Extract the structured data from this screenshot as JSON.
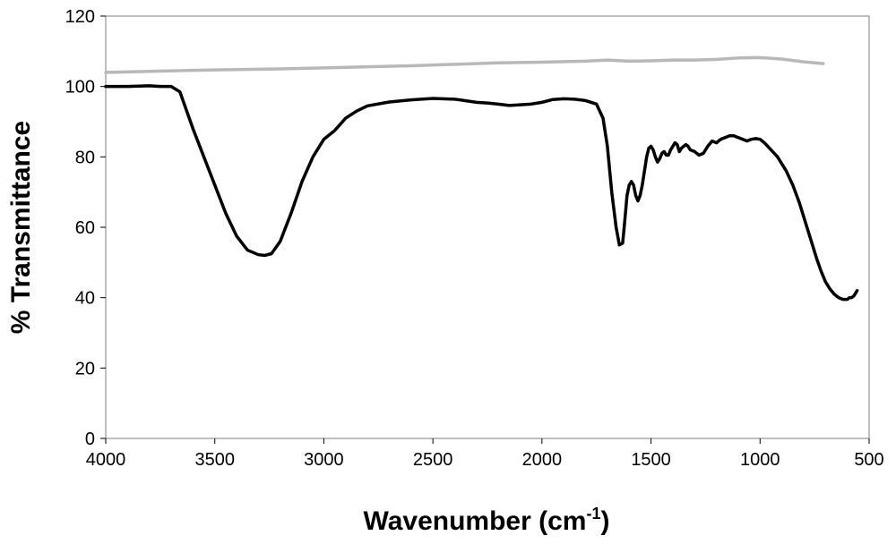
{
  "chart_data": {
    "type": "line",
    "xlabel_main": "Wavenumber (cm",
    "xlabel_sup": "-1",
    "xlabel_close": ")",
    "ylabel": "% Transmittance",
    "xlim": [
      4000,
      500
    ],
    "ylim": [
      0,
      120
    ],
    "x_ticks": [
      "4000",
      "3500",
      "3000",
      "2500",
      "2000",
      "1500",
      "1000",
      "500"
    ],
    "y_ticks": [
      "0",
      "20",
      "40",
      "60",
      "80",
      "100",
      "120"
    ],
    "grid": false,
    "legend": "none",
    "series": [
      {
        "color": "#b8b8b8",
        "x": [
          4000,
          3800,
          3600,
          3400,
          3200,
          3000,
          2800,
          2600,
          2400,
          2200,
          2000,
          1800,
          1700,
          1600,
          1500,
          1400,
          1300,
          1200,
          1100,
          1000,
          900,
          800,
          710
        ],
        "y": [
          104.0,
          104.3,
          104.6,
          104.8,
          105.0,
          105.3,
          105.6,
          105.9,
          106.3,
          106.7,
          106.9,
          107.2,
          107.5,
          107.2,
          107.3,
          107.5,
          107.5,
          107.7,
          108.1,
          108.2,
          107.8,
          107.0,
          106.5
        ]
      },
      {
        "color": "#000000",
        "x": [
          4000,
          3900,
          3800,
          3750,
          3700,
          3660,
          3600,
          3550,
          3500,
          3450,
          3400,
          3350,
          3300,
          3270,
          3240,
          3200,
          3150,
          3100,
          3050,
          3000,
          2950,
          2900,
          2850,
          2800,
          2700,
          2600,
          2500,
          2400,
          2300,
          2250,
          2200,
          2150,
          2100,
          2050,
          2000,
          1950,
          1900,
          1850,
          1800,
          1750,
          1720,
          1700,
          1680,
          1660,
          1645,
          1630,
          1620,
          1610,
          1600,
          1590,
          1580,
          1570,
          1560,
          1550,
          1540,
          1530,
          1520,
          1510,
          1500,
          1490,
          1480,
          1470,
          1460,
          1450,
          1440,
          1430,
          1420,
          1410,
          1400,
          1390,
          1380,
          1370,
          1360,
          1350,
          1340,
          1330,
          1320,
          1300,
          1280,
          1260,
          1240,
          1220,
          1200,
          1180,
          1160,
          1140,
          1120,
          1100,
          1080,
          1060,
          1040,
          1020,
          1000,
          980,
          950,
          920,
          900,
          880,
          850,
          820,
          800,
          780,
          760,
          740,
          720,
          700,
          680,
          660,
          640,
          620,
          600,
          590,
          580,
          570,
          560,
          555
        ],
        "y": [
          100.0,
          100.0,
          100.2,
          100.0,
          100.0,
          98.5,
          88.0,
          80.0,
          72.0,
          64.0,
          57.5,
          53.5,
          52.2,
          52.0,
          52.5,
          56.0,
          64.0,
          73.0,
          80.0,
          85.0,
          87.5,
          91.0,
          93.0,
          94.5,
          95.6,
          96.2,
          96.6,
          96.4,
          95.5,
          95.3,
          95.0,
          94.6,
          94.8,
          95.0,
          95.5,
          96.3,
          96.5,
          96.4,
          96.0,
          95.0,
          91.0,
          83.0,
          70.0,
          60.0,
          55.0,
          55.5,
          62.0,
          69.0,
          72.0,
          73.0,
          72.0,
          69.0,
          67.5,
          69.0,
          72.0,
          76.0,
          80.0,
          82.5,
          83.0,
          82.0,
          80.0,
          78.5,
          79.5,
          81.0,
          81.5,
          80.5,
          80.5,
          82.0,
          83.0,
          84.0,
          83.5,
          81.5,
          82.5,
          83.0,
          83.5,
          83.0,
          82.0,
          81.5,
          80.5,
          81.0,
          83.0,
          84.5,
          84.0,
          85.0,
          85.5,
          86.0,
          86.0,
          85.5,
          85.0,
          84.5,
          85.0,
          85.2,
          85.0,
          84.0,
          82.0,
          80.0,
          78.0,
          76.0,
          72.0,
          67.0,
          63.0,
          59.0,
          55.0,
          51.0,
          47.5,
          44.5,
          42.5,
          41.0,
          40.0,
          39.5,
          39.5,
          40.0,
          40.0,
          40.5,
          41.5,
          42.0
        ]
      }
    ]
  }
}
